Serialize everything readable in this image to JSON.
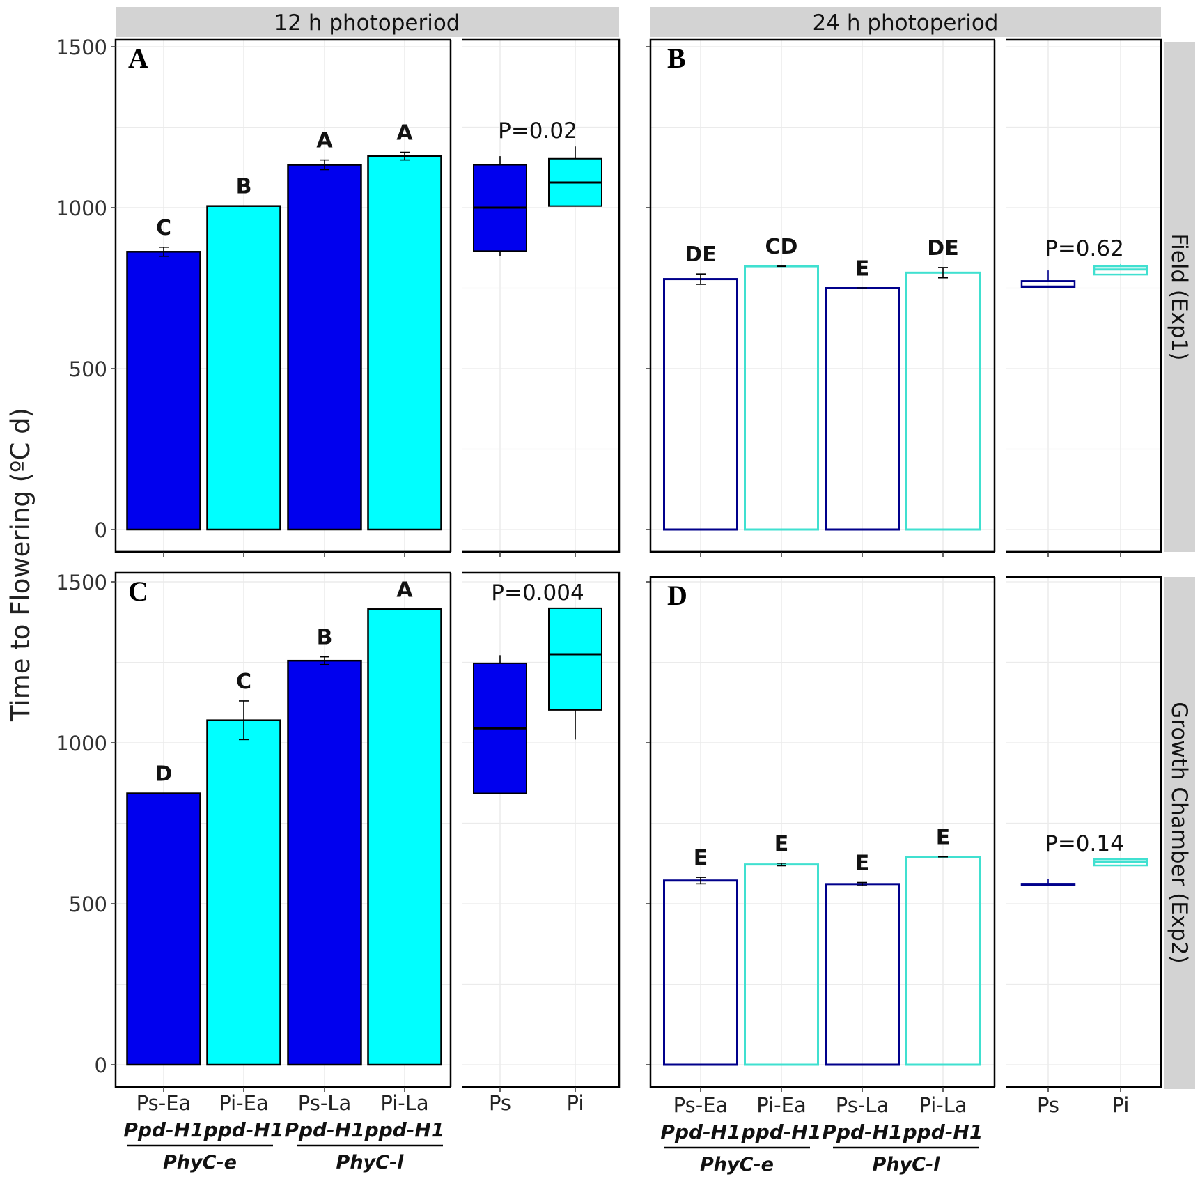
{
  "y_axis_label": "Time to Flowering (ºC d)",
  "strips": {
    "columns": [
      "12 h photoperiod",
      "24 h photoperiod"
    ],
    "rows": [
      "Field (Exp1)",
      "Growth Chamber (Exp2)"
    ]
  },
  "x_axis": {
    "bar_categories": [
      {
        "name": "Ps-Ea",
        "allele": "Ppd-H1"
      },
      {
        "name": "Pi-Ea",
        "allele": "ppd-H1"
      },
      {
        "name": "Ps-La",
        "allele": "Ppd-H1"
      },
      {
        "name": "Pi-La",
        "allele": "ppd-H1"
      }
    ],
    "groups": [
      "PhyC-e",
      "PhyC-l"
    ],
    "box_categories": [
      "Ps",
      "Pi"
    ]
  },
  "colors": {
    "ps_fill": "#0000ee",
    "pi_fill": "#00ffff",
    "ps_outline": "#00008b",
    "pi_outline": "#40e0d0",
    "strip_bg": "#d3d3d3",
    "grid": "#ebebeb"
  },
  "chart_data": [
    {
      "type": "bar",
      "panel": "A",
      "photoperiod": "12 h photoperiod",
      "experiment": "Field (Exp1)",
      "categories": [
        "Ps-Ea",
        "Pi-Ea",
        "Ps-La",
        "Pi-La"
      ],
      "values": [
        863,
        1005,
        1133,
        1160
      ],
      "errors": [
        14,
        0,
        15,
        12
      ],
      "letters": [
        "C",
        "B",
        "A",
        "A"
      ],
      "style": "filled",
      "ylim": [
        0,
        1500
      ],
      "yticks": [
        0,
        500,
        1000,
        1500
      ],
      "boxplot": {
        "p_label": "P=0.02",
        "boxes": [
          {
            "name": "Ps",
            "min": 850,
            "q1": 865,
            "median": 1000,
            "q3": 1133,
            "max": 1160
          },
          {
            "name": "Pi",
            "min": 1005,
            "q1": 1005,
            "median": 1078,
            "q3": 1152,
            "max": 1190
          }
        ]
      }
    },
    {
      "type": "bar",
      "panel": "B",
      "photoperiod": "24 h photoperiod",
      "experiment": "Field (Exp1)",
      "categories": [
        "Ps-Ea",
        "Pi-Ea",
        "Ps-La",
        "Pi-La"
      ],
      "values": [
        778,
        818,
        750,
        798
      ],
      "errors": [
        16,
        0,
        0,
        16
      ],
      "letters": [
        "DE",
        "CD",
        "E",
        "DE"
      ],
      "style": "outline",
      "ylim": [
        0,
        1500
      ],
      "yticks": [
        0,
        500,
        1000,
        1500
      ],
      "boxplot": {
        "p_label": "P=0.62",
        "boxes": [
          {
            "name": "Ps",
            "min": 750,
            "q1": 752,
            "median": 755,
            "q3": 772,
            "max": 805
          },
          {
            "name": "Pi",
            "min": 790,
            "q1": 792,
            "median": 808,
            "q3": 818,
            "max": 825
          }
        ]
      }
    },
    {
      "type": "bar",
      "panel": "C",
      "photoperiod": "12 h photoperiod",
      "experiment": "Growth Chamber (Exp2)",
      "categories": [
        "Ps-Ea",
        "Pi-Ea",
        "Ps-La",
        "Pi-La"
      ],
      "values": [
        843,
        1070,
        1255,
        1415
      ],
      "errors": [
        0,
        60,
        12,
        0
      ],
      "letters": [
        "D",
        "C",
        "B",
        "A"
      ],
      "style": "filled",
      "ylim": [
        0,
        1500
      ],
      "yticks": [
        0,
        500,
        1000,
        1500
      ],
      "boxplot": {
        "p_label": "P=0.004",
        "boxes": [
          {
            "name": "Ps",
            "min": 843,
            "q1": 843,
            "median": 1045,
            "q3": 1247,
            "max": 1272
          },
          {
            "name": "Pi",
            "min": 1010,
            "q1": 1102,
            "median": 1275,
            "q3": 1418,
            "max": 1418
          }
        ]
      }
    },
    {
      "type": "bar",
      "panel": "D",
      "photoperiod": "24 h photoperiod",
      "experiment": "Growth Chamber (Exp2)",
      "categories": [
        "Ps-Ea",
        "Pi-Ea",
        "Ps-La",
        "Pi-La"
      ],
      "values": [
        572,
        622,
        561,
        646
      ],
      "errors": [
        10,
        4,
        5,
        0
      ],
      "letters": [
        "E",
        "E",
        "E",
        "E"
      ],
      "style": "outline",
      "ylim": [
        0,
        1500
      ],
      "yticks": [
        0,
        500,
        1000,
        1500
      ],
      "boxplot": {
        "p_label": "P=0.14",
        "boxes": [
          {
            "name": "Ps",
            "min": 557,
            "q1": 557,
            "median": 561,
            "q3": 562,
            "max": 576
          },
          {
            "name": "Pi",
            "min": 619,
            "q1": 619,
            "median": 630,
            "q3": 638,
            "max": 638
          }
        ]
      }
    }
  ]
}
